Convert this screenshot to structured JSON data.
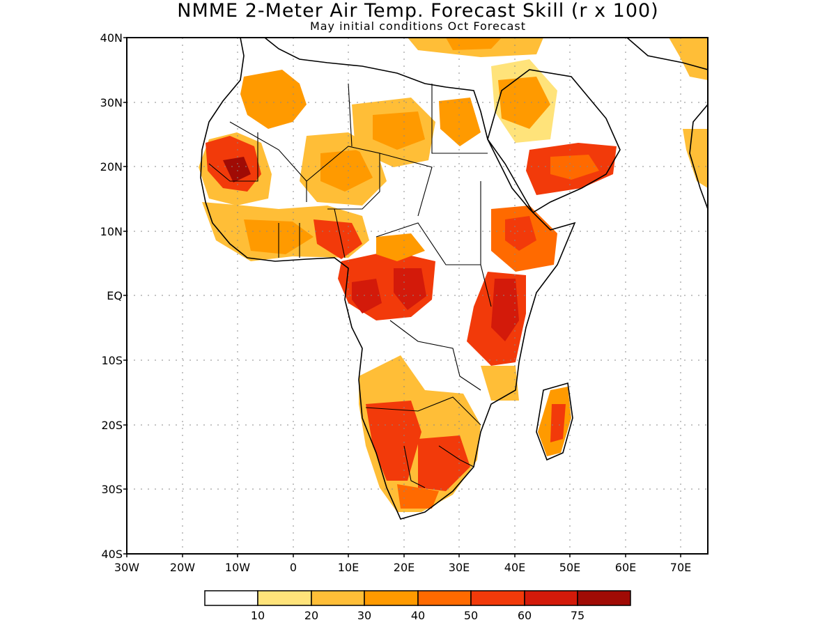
{
  "title": "NMME 2-Meter Air Temp. Forecast Skill (r x 100)",
  "subtitle": "May initial conditions  Oct Forecast",
  "axes": {
    "lat_labels": [
      "40N",
      "30N",
      "20N",
      "10N",
      "EQ",
      "10S",
      "20S",
      "30S",
      "40S"
    ],
    "lon_labels": [
      "30W",
      "20W",
      "10W",
      "0",
      "10E",
      "20E",
      "30E",
      "40E",
      "50E",
      "60E",
      "70E"
    ]
  },
  "colorbar": {
    "colors": [
      "#ffffff",
      "#ffe37a",
      "#ffbe37",
      "#ff9a00",
      "#ff6a00",
      "#f23a0a",
      "#d31a0a",
      "#a00b05"
    ],
    "labels": [
      "10",
      "20",
      "30",
      "40",
      "50",
      "60",
      "75"
    ]
  },
  "skill_regions": [
    {
      "name": "northwest",
      "level": 3
    },
    {
      "name": "mauritania",
      "level": 6
    },
    {
      "name": "sahara-central",
      "level": 3
    },
    {
      "name": "egypt-libya",
      "level": 3
    },
    {
      "name": "arabia-south",
      "level": 5
    },
    {
      "name": "ethiopia",
      "level": 5
    },
    {
      "name": "congo",
      "level": 6
    },
    {
      "name": "east-africa",
      "level": 6
    },
    {
      "name": "southern-africa",
      "level": 5
    },
    {
      "name": "madagascar",
      "level": 4
    }
  ]
}
